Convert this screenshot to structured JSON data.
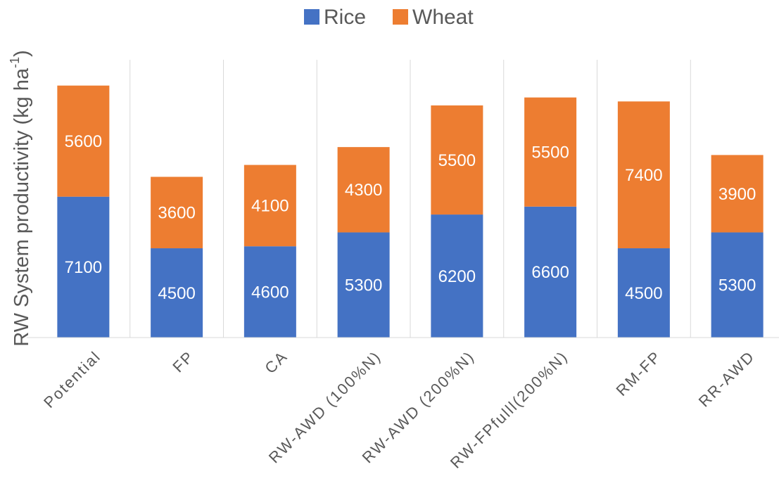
{
  "chart_data": {
    "type": "stacked_bar",
    "y_label": [
      "RW System productivity (kg ha",
      "-1",
      ")"
    ],
    "categories": [
      "Potential",
      "FP",
      "CA",
      "RW-AWD (100%N)",
      "RW-AWD (200%N)",
      "RW-FPfulll(200%N)",
      "RM-FP",
      "RR-AWD"
    ],
    "series": [
      {
        "name": "Rice",
        "color": "#4472c4",
        "values": [
          7100,
          4500,
          4600,
          5300,
          6200,
          6600,
          4500,
          5300
        ]
      },
      {
        "name": "Wheat",
        "color": "#ed7d31",
        "values": [
          5600,
          3600,
          4100,
          4300,
          5500,
          5500,
          7400,
          3900
        ]
      }
    ],
    "ylim": [
      0,
      14000
    ]
  }
}
